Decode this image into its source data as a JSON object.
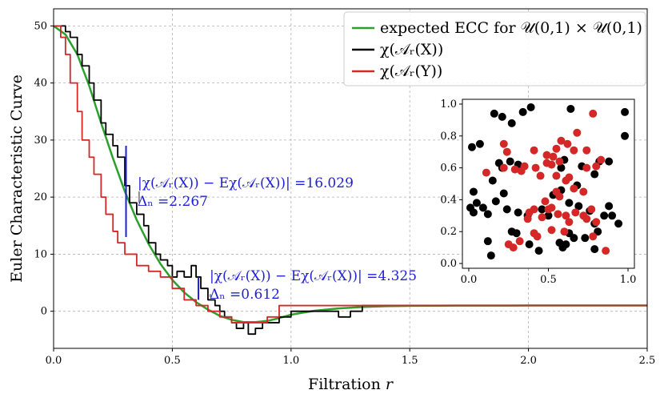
{
  "chart_data": {
    "type": "line",
    "title": "",
    "xlabel": "Filtration r",
    "ylabel": "Euler Characteristic Curve",
    "xlim": [
      0,
      2.5
    ],
    "ylim": [
      -6.5,
      53
    ],
    "xticks": [
      0.0,
      0.5,
      1.0,
      1.5,
      2.0,
      2.5
    ],
    "xtick_labels": [
      "0.0",
      "0.5",
      "1.0",
      "1.5",
      "2.0",
      "2.5"
    ],
    "yticks": [
      0,
      10,
      20,
      30,
      40,
      50
    ],
    "ytick_labels": [
      "0",
      "10",
      "20",
      "30",
      "40",
      "50"
    ],
    "grid": true,
    "legend_position": "top-right",
    "series": [
      {
        "name": "expected ECC for U(0,1) × U(0,1)",
        "color": "#2ca02c",
        "x": [
          0,
          0.05,
          0.1,
          0.15,
          0.2,
          0.25,
          0.3,
          0.35,
          0.4,
          0.45,
          0.5,
          0.55,
          0.6,
          0.65,
          0.7,
          0.75,
          0.8,
          0.85,
          0.9,
          0.95,
          1.0,
          1.1,
          1.2,
          1.3,
          1.4,
          1.5,
          1.7,
          2.0,
          2.5
        ],
        "y": [
          50,
          48.5,
          45,
          39.5,
          33,
          26.8,
          21,
          16,
          11.8,
          8.3,
          5.5,
          3.3,
          1.6,
          0.3,
          -0.8,
          -1.5,
          -1.9,
          -1.9,
          -1.7,
          -1.2,
          -0.6,
          0.1,
          0.5,
          0.75,
          0.88,
          0.95,
          0.99,
          1.0,
          1.0
        ]
      },
      {
        "name": "χ(A_r(X))",
        "color": "#000000",
        "x": [
          0,
          0.05,
          0.07,
          0.1,
          0.12,
          0.15,
          0.17,
          0.2,
          0.22,
          0.25,
          0.27,
          0.3,
          0.32,
          0.35,
          0.38,
          0.4,
          0.43,
          0.45,
          0.48,
          0.5,
          0.52,
          0.55,
          0.58,
          0.6,
          0.62,
          0.65,
          0.68,
          0.7,
          0.72,
          0.75,
          0.77,
          0.8,
          0.82,
          0.85,
          0.88,
          0.9,
          0.95,
          1.0,
          1.1,
          1.2,
          1.25,
          1.3,
          1.4,
          1.5,
          1.66,
          1.7,
          2.0,
          2.5
        ],
        "y": [
          50,
          49,
          48,
          45,
          43,
          40,
          37,
          33,
          31,
          29,
          27,
          22,
          19,
          17,
          15,
          12,
          10,
          9,
          8,
          6,
          7,
          6,
          8,
          6,
          4,
          2,
          1,
          0,
          -1,
          -2,
          -3,
          -2,
          -4,
          -3,
          -2,
          -2,
          -1,
          0,
          0,
          -1,
          0,
          1,
          1,
          1,
          1,
          1,
          1,
          1
        ]
      },
      {
        "name": "χ(A_r(Y))",
        "color": "#d62728",
        "x": [
          0,
          0.03,
          0.05,
          0.07,
          0.1,
          0.12,
          0.15,
          0.17,
          0.2,
          0.22,
          0.25,
          0.27,
          0.3,
          0.35,
          0.4,
          0.45,
          0.5,
          0.55,
          0.6,
          0.65,
          0.7,
          0.75,
          0.8,
          0.9,
          0.95,
          1.0,
          1.2,
          1.5,
          2.0,
          2.5
        ],
        "y": [
          50,
          48,
          45,
          40,
          35,
          30,
          27,
          24,
          20,
          17,
          14,
          12,
          10,
          8,
          7,
          6,
          4,
          2,
          1,
          0,
          -1,
          -2,
          -2,
          -1,
          1,
          1,
          1,
          1,
          1,
          1
        ]
      }
    ],
    "annotations": [
      {
        "label": "|χ(A_r(X)) − Eχ(A_r(X))| =16.029",
        "x": 0.305,
        "y1": 13,
        "y2": 29
      },
      {
        "label": "Δ_n =2.267",
        "x": 0.36,
        "y1": 19,
        "y2": 21
      },
      {
        "label": "|χ(A_r(X)) − Eχ(A_r(X))| =4.325",
        "x": 0.61,
        "y1": 2,
        "y2": 6
      },
      {
        "label": "Δ_n =0.612",
        "x": 0.66,
        "y1": 2.5,
        "y2": 3
      }
    ],
    "inset": {
      "type": "scatter",
      "xlim": [
        -0.04,
        1.04
      ],
      "ylim": [
        -0.03,
        1.03
      ],
      "xticks": [
        0.0,
        0.5,
        1.0
      ],
      "xtick_labels": [
        "0.0",
        "0.5",
        "1.0"
      ],
      "yticks": [
        0.0,
        0.2,
        0.4,
        0.6,
        0.8,
        1.0
      ],
      "ytick_labels": [
        "0.0",
        "0.2",
        "0.4",
        "0.6",
        "0.8",
        "1.0"
      ],
      "series": [
        {
          "name": "X",
          "color": "#000000",
          "points": [
            [
              0.02,
              0.73
            ],
            [
              0.07,
              0.75
            ],
            [
              0.16,
              0.94
            ],
            [
              0.21,
              0.92
            ],
            [
              0.27,
              0.88
            ],
            [
              0.34,
              0.95
            ],
            [
              0.39,
              0.98
            ],
            [
              0.64,
              0.97
            ],
            [
              0.98,
              0.95
            ],
            [
              0.98,
              0.8
            ],
            [
              0.79,
              0.56
            ],
            [
              0.82,
              0.64
            ],
            [
              0.88,
              0.64
            ],
            [
              0.6,
              0.65
            ],
            [
              0.19,
              0.63
            ],
            [
              0.26,
              0.64
            ],
            [
              0.15,
              0.52
            ],
            [
              0.22,
              0.44
            ],
            [
              0.03,
              0.45
            ],
            [
              0.05,
              0.38
            ],
            [
              0.01,
              0.35
            ],
            [
              0.03,
              0.32
            ],
            [
              0.09,
              0.35
            ],
            [
              0.12,
              0.31
            ],
            [
              0.17,
              0.39
            ],
            [
              0.24,
              0.34
            ],
            [
              0.31,
              0.32
            ],
            [
              0.37,
              0.3
            ],
            [
              0.46,
              0.34
            ],
            [
              0.53,
              0.43
            ],
            [
              0.58,
              0.46
            ],
            [
              0.63,
              0.38
            ],
            [
              0.69,
              0.36
            ],
            [
              0.76,
              0.33
            ],
            [
              0.79,
              0.25
            ],
            [
              0.85,
              0.3
            ],
            [
              0.88,
              0.36
            ],
            [
              0.9,
              0.3
            ],
            [
              0.94,
              0.25
            ],
            [
              0.63,
              0.19
            ],
            [
              0.59,
              0.1
            ],
            [
              0.61,
              0.12
            ],
            [
              0.38,
              0.12
            ],
            [
              0.44,
              0.08
            ],
            [
              0.12,
              0.14
            ],
            [
              0.14,
              0.05
            ],
            [
              0.27,
              0.2
            ],
            [
              0.3,
              0.19
            ],
            [
              0.81,
              0.2
            ],
            [
              0.79,
              0.09
            ],
            [
              0.73,
              0.16
            ],
            [
              0.71,
              0.61
            ],
            [
              0.68,
              0.49
            ],
            [
              0.58,
              0.6
            ],
            [
              0.21,
              0.6
            ],
            [
              0.5,
              0.3
            ],
            [
              0.57,
              0.13
            ],
            [
              0.66,
              0.16
            ],
            [
              0.31,
              0.62
            ]
          ]
        },
        {
          "name": "Y",
          "color": "#d62728",
          "points": [
            [
              0.78,
              0.94
            ],
            [
              0.58,
              0.77
            ],
            [
              0.68,
              0.82
            ],
            [
              0.62,
              0.75
            ],
            [
              0.66,
              0.71
            ],
            [
              0.74,
              0.71
            ],
            [
              0.22,
              0.75
            ],
            [
              0.24,
              0.7
            ],
            [
              0.41,
              0.71
            ],
            [
              0.49,
              0.68
            ],
            [
              0.55,
              0.72
            ],
            [
              0.53,
              0.67
            ],
            [
              0.57,
              0.64
            ],
            [
              0.49,
              0.63
            ],
            [
              0.52,
              0.62
            ],
            [
              0.42,
              0.6
            ],
            [
              0.35,
              0.61
            ],
            [
              0.33,
              0.58
            ],
            [
              0.29,
              0.59
            ],
            [
              0.11,
              0.57
            ],
            [
              0.74,
              0.6
            ],
            [
              0.8,
              0.61
            ],
            [
              0.83,
              0.65
            ],
            [
              0.61,
              0.52
            ],
            [
              0.63,
              0.54
            ],
            [
              0.66,
              0.47
            ],
            [
              0.72,
              0.45
            ],
            [
              0.55,
              0.55
            ],
            [
              0.55,
              0.45
            ],
            [
              0.57,
              0.42
            ],
            [
              0.52,
              0.35
            ],
            [
              0.48,
              0.39
            ],
            [
              0.5,
              0.34
            ],
            [
              0.41,
              0.34
            ],
            [
              0.38,
              0.32
            ],
            [
              0.37,
              0.28
            ],
            [
              0.46,
              0.29
            ],
            [
              0.56,
              0.31
            ],
            [
              0.61,
              0.3
            ],
            [
              0.67,
              0.32
            ],
            [
              0.72,
              0.3
            ],
            [
              0.77,
              0.34
            ],
            [
              0.74,
              0.28
            ],
            [
              0.8,
              0.26
            ],
            [
              0.6,
              0.2
            ],
            [
              0.63,
              0.26
            ],
            [
              0.78,
              0.17
            ],
            [
              0.52,
              0.21
            ],
            [
              0.41,
              0.19
            ],
            [
              0.43,
              0.17
            ],
            [
              0.25,
              0.12
            ],
            [
              0.28,
              0.1
            ],
            [
              0.86,
              0.08
            ],
            [
              0.22,
              0.6
            ],
            [
              0.45,
              0.55
            ],
            [
              0.32,
              0.14
            ]
          ]
        }
      ]
    }
  },
  "legend": [
    {
      "label": "expected ECC for 𝒰(0,1) × 𝒰(0,1)",
      "color": "#2ca02c"
    },
    {
      "label": "χ(𝒜ᵣ(X))",
      "color": "#000000"
    },
    {
      "label": "χ(𝒜ᵣ(Y))",
      "color": "#d62728"
    }
  ],
  "annotation_text": {
    "a1": "|χ(𝒜ᵣ(X)) − Eχ(𝒜ᵣ(X))| =16.029",
    "a2": "Δₙ =2.267",
    "a3": "|χ(𝒜ᵣ(X)) − Eχ(𝒜ᵣ(X))| =4.325",
    "a4": "Δₙ =0.612"
  },
  "axis_text": {
    "xlabel": "Filtration 𝑟",
    "ylabel": "Euler Characteristic Curve"
  }
}
